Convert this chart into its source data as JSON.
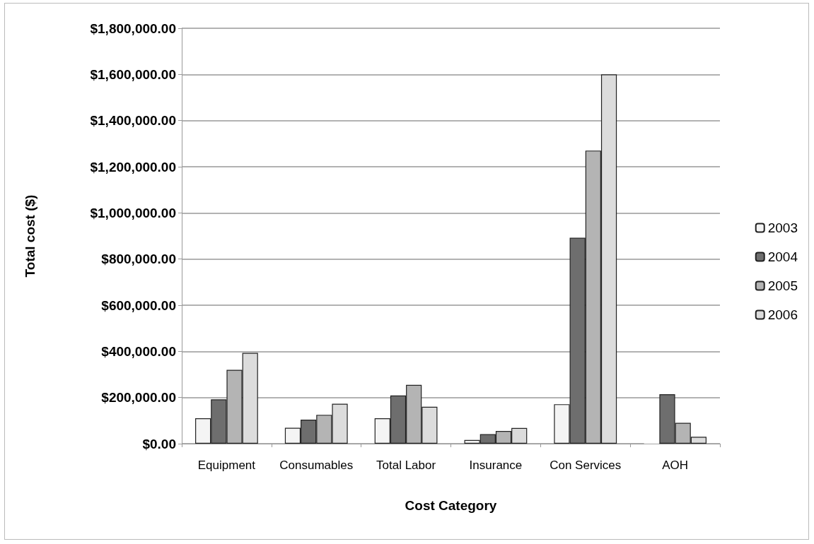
{
  "chart_data": {
    "type": "bar",
    "xlabel": "Cost Category",
    "ylabel": "Total cost ($)",
    "categories": [
      "Equipment",
      "Consumables",
      "Total Labor",
      "Insurance",
      "Con Services",
      "AOH"
    ],
    "series": [
      {
        "name": "2003",
        "color": "#f4f4f4",
        "values": [
          110000,
          69000,
          110000,
          16000,
          171000,
          3000
        ]
      },
      {
        "name": "2004",
        "color": "#6e6e6e",
        "values": [
          192000,
          104000,
          209000,
          41000,
          892000,
          214000
        ]
      },
      {
        "name": "2005",
        "color": "#b4b4b4",
        "values": [
          320000,
          125000,
          255000,
          55000,
          1270000,
          90000
        ]
      },
      {
        "name": "2006",
        "color": "#dcdcdc",
        "values": [
          393000,
          173000,
          160000,
          68000,
          1600000,
          30000
        ]
      }
    ],
    "ylim": [
      0,
      1800000
    ],
    "yticks": [
      {
        "value": 0,
        "label": "$0.00"
      },
      {
        "value": 200000,
        "label": "$200,000.00"
      },
      {
        "value": 400000,
        "label": "$400,000.00"
      },
      {
        "value": 600000,
        "label": "$600,000.00"
      },
      {
        "value": 800000,
        "label": "$800,000.00"
      },
      {
        "value": 1000000,
        "label": "$1,000,000.00"
      },
      {
        "value": 1200000,
        "label": "$1,200,000.00"
      },
      {
        "value": 1400000,
        "label": "$1,400,000.00"
      },
      {
        "value": 1600000,
        "label": "$1,600,000.00"
      },
      {
        "value": 1800000,
        "label": "$1,800,000.00"
      }
    ],
    "grid": "y",
    "legend": "right"
  }
}
